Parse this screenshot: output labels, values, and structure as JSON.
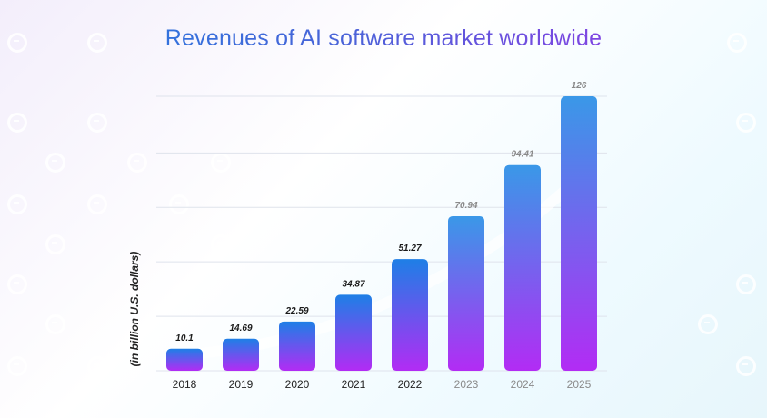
{
  "chart_data": {
    "type": "bar",
    "title": "Revenues of AI software market worldwide",
    "ylabel": "(in billion U.S. dollars)",
    "xlabel": "",
    "categories": [
      "2018",
      "2019",
      "2020",
      "2021",
      "2022",
      "2023",
      "2024",
      "2025"
    ],
    "values": [
      10.1,
      14.69,
      22.59,
      34.87,
      51.27,
      70.94,
      94.41,
      126
    ],
    "value_labels": [
      "10.1",
      "14.69",
      "22.59",
      "34.87",
      "51.27",
      "70.94",
      "94.41",
      "126"
    ],
    "forecast_start_index": 5,
    "ylim": [
      0,
      140
    ],
    "grid": true,
    "colors": {
      "bar_top": "#1e7fe6",
      "bar_bottom": "#b22cf4",
      "forecast_bar_top": "#3a98e8",
      "label_actual": "#1a1a1a",
      "label_forecast": "#8a8a8a",
      "trend_line": "#ffffff"
    }
  }
}
